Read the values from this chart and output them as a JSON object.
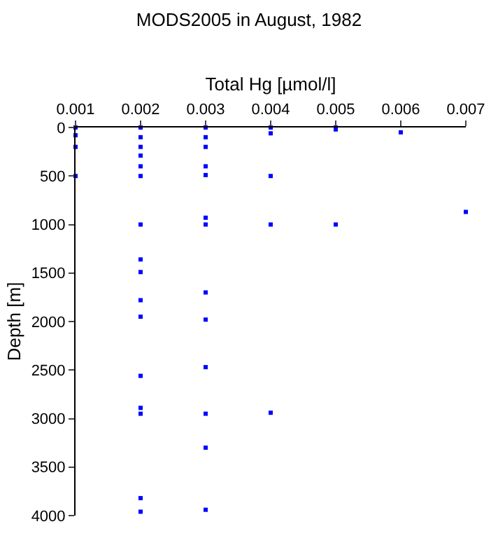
{
  "chart_data": {
    "type": "scatter",
    "title": "MODS2005 in August, 1982",
    "xlabel": "Total Hg [µmol/l]",
    "ylabel": "Depth [m]",
    "x": [
      0.001,
      0.001,
      0.001,
      0.001,
      0.002,
      0.002,
      0.002,
      0.002,
      0.002,
      0.002,
      0.002,
      0.002,
      0.002,
      0.002,
      0.002,
      0.002,
      0.002,
      0.002,
      0.002,
      0.002,
      0.003,
      0.003,
      0.003,
      0.003,
      0.003,
      0.003,
      0.003,
      0.003,
      0.003,
      0.003,
      0.003,
      0.003,
      0.003,
      0.004,
      0.004,
      0.004,
      0.004,
      0.004,
      0.005,
      0.005,
      0.005,
      0.006,
      0.007
    ],
    "series": [
      {
        "color": "#0000ff",
        "values": [
          0,
          80,
          200,
          500,
          0,
          100,
          200,
          290,
          400,
          500,
          1000,
          1360,
          1490,
          1780,
          1950,
          2560,
          2890,
          2950,
          3820,
          3960,
          0,
          100,
          200,
          400,
          490,
          930,
          1000,
          1700,
          1980,
          2470,
          2950,
          3300,
          3940,
          0,
          60,
          500,
          1000,
          2940,
          0,
          20,
          1000,
          50,
          870
        ]
      }
    ],
    "xlim": [
      0.001,
      0.007
    ],
    "xticks": [
      0.001,
      0.002,
      0.003,
      0.004,
      0.005,
      0.006,
      0.007
    ],
    "ylim": [
      4000,
      0
    ],
    "yticks": [
      0,
      500,
      1000,
      1500,
      2000,
      2500,
      3000,
      3500,
      4000
    ],
    "marker": "square"
  }
}
